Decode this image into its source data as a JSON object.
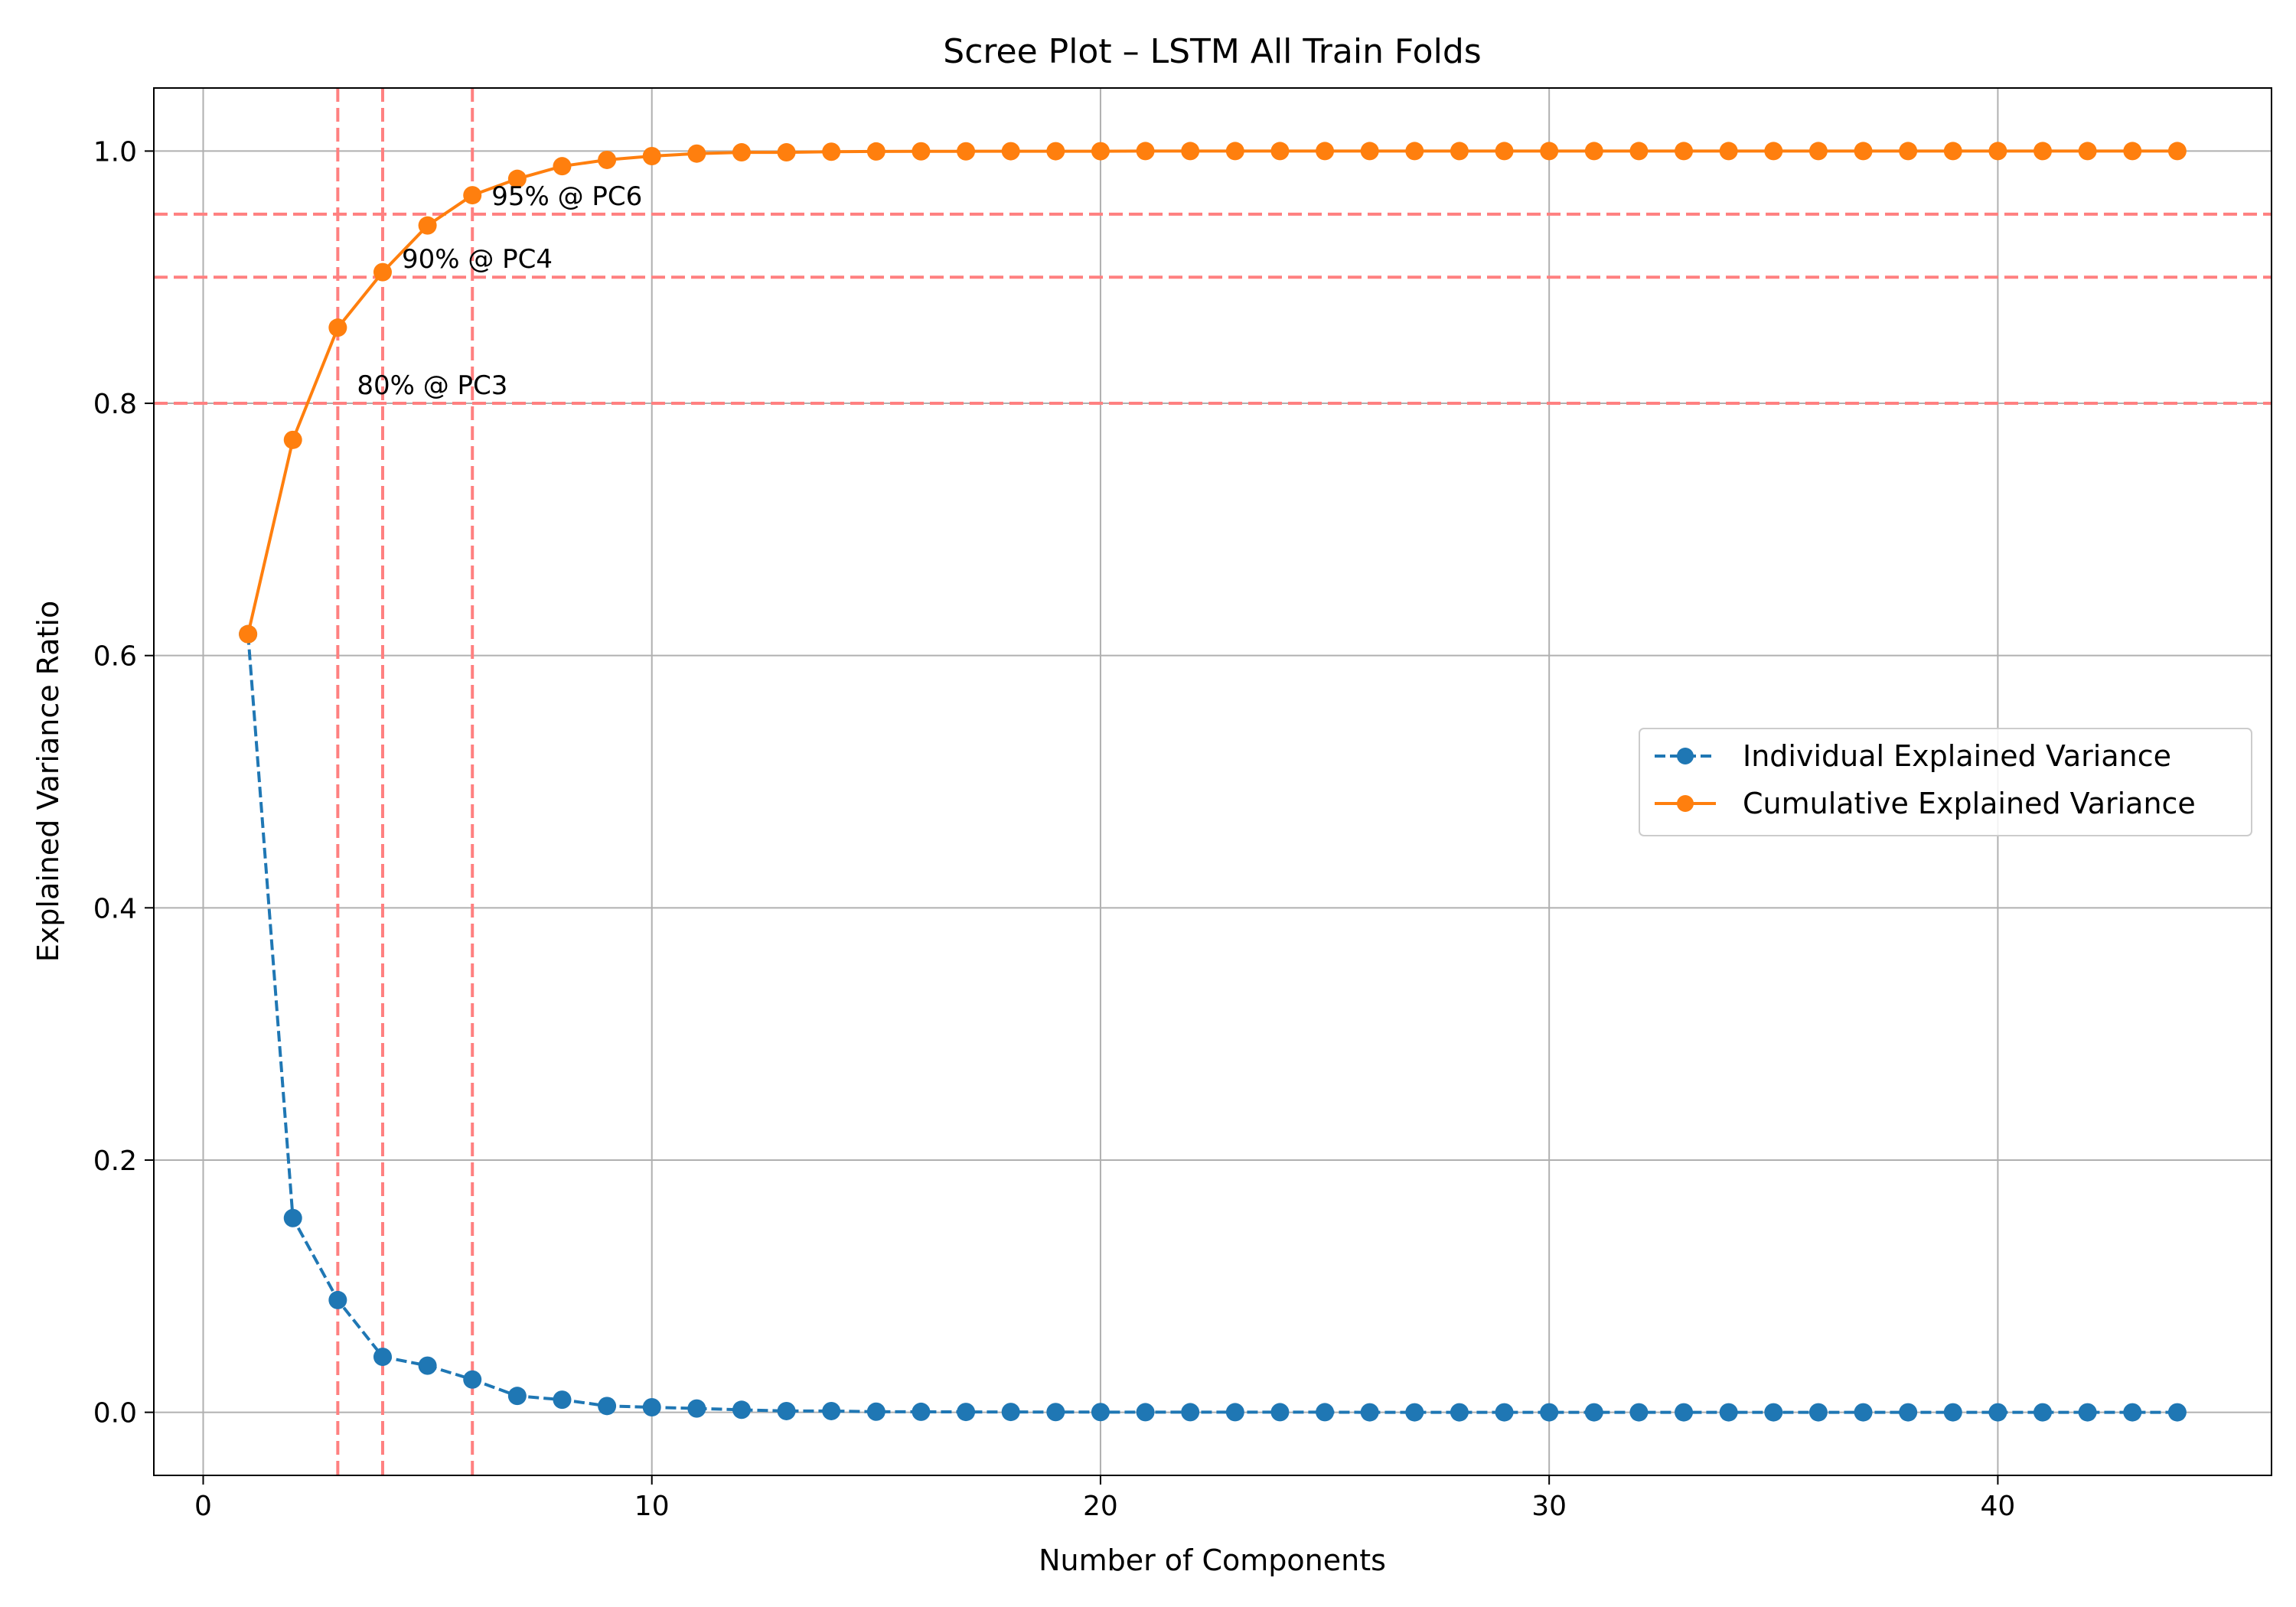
{
  "chart_data": {
    "type": "line",
    "title": "Scree Plot – LSTM All Train Folds",
    "xlabel": "Number of Components",
    "ylabel": "Explained Variance Ratio",
    "xlim": [
      -1.1,
      46.1
    ],
    "ylim": [
      -0.05,
      1.05
    ],
    "xticks": [
      0,
      10,
      20,
      30,
      40
    ],
    "yticks": [
      0.0,
      0.2,
      0.4,
      0.6,
      0.8,
      1.0
    ],
    "xtick_labels": [
      "0",
      "10",
      "20",
      "30",
      "40"
    ],
    "ytick_labels": [
      "0.0",
      "0.2",
      "0.4",
      "0.6",
      "0.8",
      "1.0"
    ],
    "grid": true,
    "legend_position": "center-right",
    "x": [
      1,
      2,
      3,
      4,
      5,
      6,
      7,
      8,
      9,
      10,
      11,
      12,
      13,
      14,
      15,
      16,
      17,
      18,
      19,
      20,
      21,
      22,
      23,
      24,
      25,
      26,
      27,
      28,
      29,
      30,
      31,
      32,
      33,
      34,
      35,
      36,
      37,
      38,
      39,
      40,
      41,
      42,
      43,
      44
    ],
    "series": [
      {
        "name": "Individual Explained Variance",
        "color": "#1f77b4",
        "linestyle": "dashed",
        "marker": "circle",
        "values": [
          0.617,
          0.154,
          0.089,
          0.044,
          0.037,
          0.026,
          0.013,
          0.01,
          0.005,
          0.004,
          0.003,
          0.002,
          0.001,
          0.001,
          0.0005,
          0.0004,
          0.0003,
          0.0003,
          0.0002,
          0.0002,
          0.0001,
          0.0001,
          0.0001,
          0.0001,
          0.0001,
          0,
          0,
          0,
          0,
          0,
          0,
          0,
          0,
          0,
          0,
          0,
          0,
          0,
          0,
          0,
          0,
          0,
          0,
          0
        ]
      },
      {
        "name": "Cumulative Explained Variance",
        "color": "#ff7f0e",
        "linestyle": "solid",
        "marker": "circle",
        "values": [
          0.617,
          0.771,
          0.86,
          0.904,
          0.941,
          0.965,
          0.978,
          0.988,
          0.993,
          0.996,
          0.998,
          0.999,
          0.999,
          0.9995,
          0.9997,
          0.9998,
          0.9998,
          0.9999,
          0.9999,
          0.9999,
          1.0,
          1.0,
          1.0,
          1.0,
          1.0,
          1.0,
          1.0,
          1.0,
          1.0,
          1.0,
          1.0,
          1.0,
          1.0,
          1.0,
          1.0,
          1.0,
          1.0,
          1.0,
          1.0,
          1.0,
          1.0,
          1.0,
          1.0,
          1.0
        ]
      }
    ],
    "reference_lines": {
      "color": "#ff8080",
      "horizontal": [
        0.8,
        0.9,
        0.95
      ],
      "vertical": [
        3,
        4,
        6
      ]
    },
    "annotations": [
      {
        "text": "80% @ PC3",
        "x": 3,
        "y": 0.8
      },
      {
        "text": "90% @ PC4",
        "x": 4,
        "y": 0.9
      },
      {
        "text": "95% @ PC6",
        "x": 6,
        "y": 0.95
      }
    ]
  }
}
